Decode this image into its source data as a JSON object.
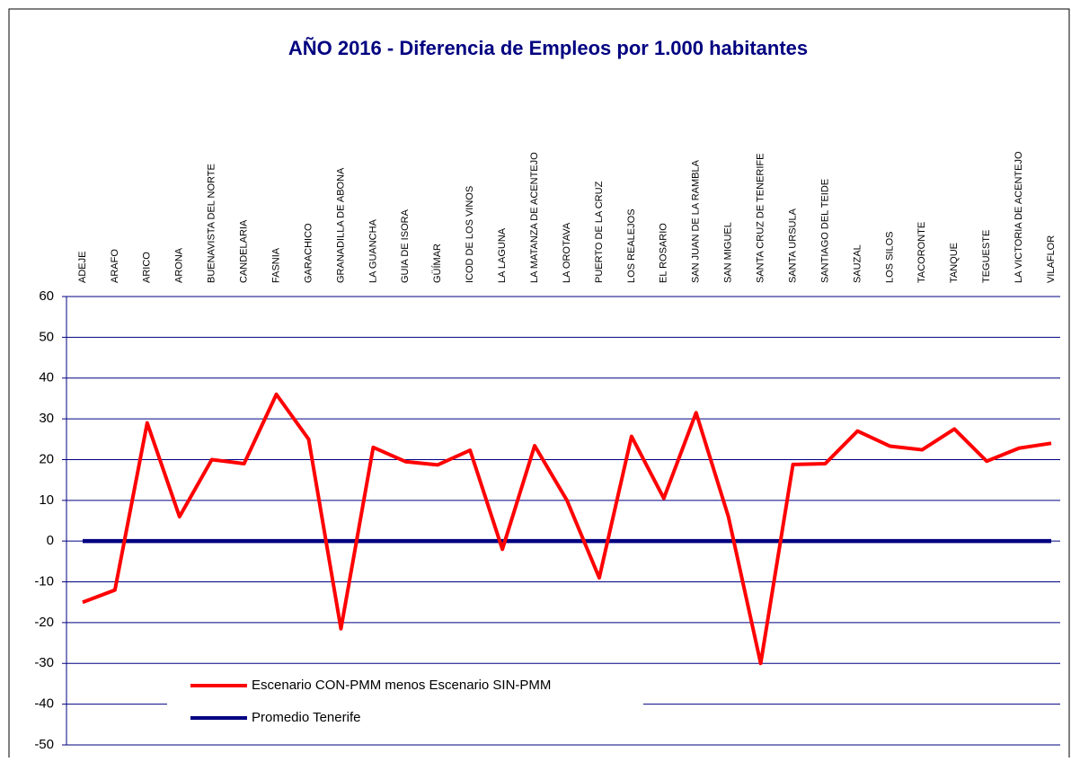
{
  "chart_data": {
    "type": "line",
    "title": "AÑO 2016 - Diferencia de Empleos por 1.000 habitantes",
    "categories": [
      "ADEJE",
      "ARAFO",
      "ARICO",
      "ARONA",
      "BUENAVISTA DEL NORTE",
      "CANDELARIA",
      "FASNIA",
      "GARACHICO",
      "GRANADILLA DE ABONA",
      "LA GUANCHA",
      "GUIA DE ISORA",
      "GÜÍMAR",
      "ICOD DE LOS VINOS",
      "LA LAGUNA",
      "LA MATANZA DE ACENTEJO",
      "LA OROTAVA",
      "PUERTO DE LA CRUZ",
      "LOS REALEJOS",
      "EL ROSARIO",
      "SAN JUAN DE LA RAMBLA",
      "SAN MIGUEL",
      "SANTA CRUZ DE TENERIFE",
      "SANTA URSULA",
      "SANTIAGO DEL TEIDE",
      "SAUZAL",
      "LOS SILOS",
      "TACORONTE",
      "TANQUE",
      "TEGUESTE",
      "LA VICTORIA DE ACENTEJO",
      "VILAFLOR"
    ],
    "series": [
      {
        "name": "Escenario CON-PMM menos Escenario SIN-PMM",
        "color": "#ff0000",
        "values": [
          -15,
          -12,
          29,
          6,
          20,
          19,
          36,
          25,
          -21.5,
          23,
          19.5,
          18.7,
          22.3,
          -2,
          23.4,
          10,
          -9,
          25.7,
          10.5,
          31.5,
          6,
          -30,
          18.8,
          19,
          27,
          23.3,
          22.4,
          27.5,
          19.6,
          22.8,
          24
        ]
      },
      {
        "name": "Promedio Tenerife",
        "color": "#000080",
        "values": [
          0,
          0,
          0,
          0,
          0,
          0,
          0,
          0,
          0,
          0,
          0,
          0,
          0,
          0,
          0,
          0,
          0,
          0,
          0,
          0,
          0,
          0,
          0,
          0,
          0,
          0,
          0,
          0,
          0,
          0,
          0
        ]
      }
    ],
    "ylim": [
      -50,
      60
    ],
    "yticks": [
      -50,
      -40,
      -30,
      -20,
      -10,
      0,
      10,
      20,
      30,
      40,
      50,
      60
    ],
    "grid": true
  }
}
